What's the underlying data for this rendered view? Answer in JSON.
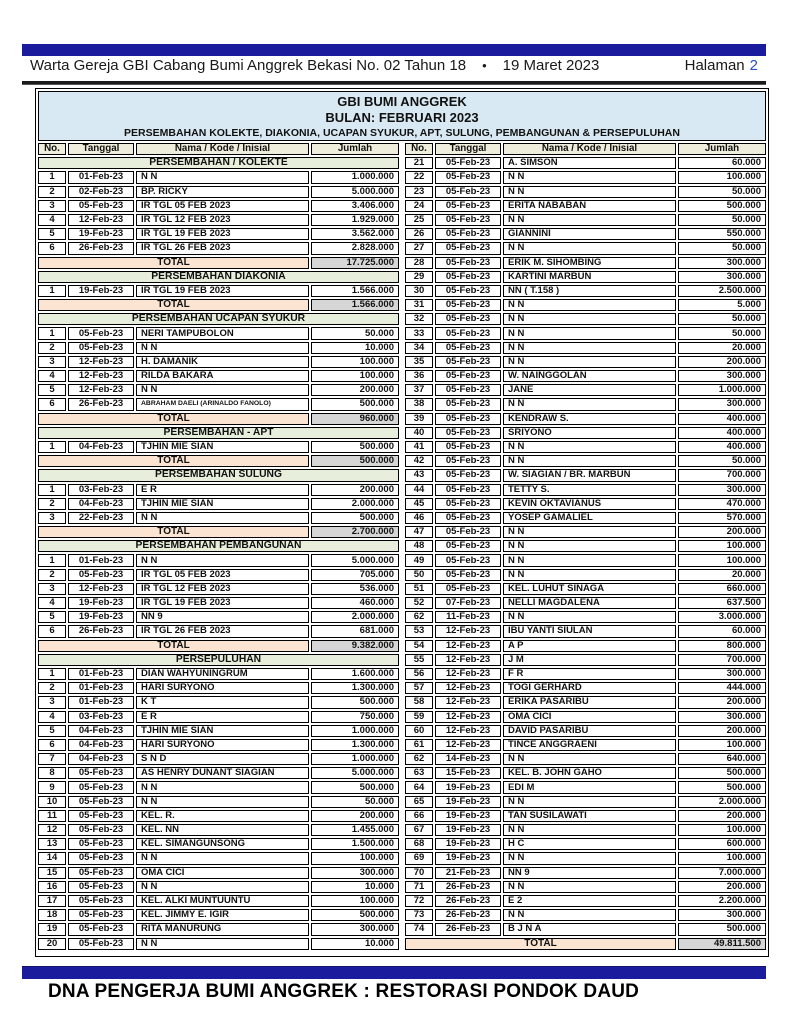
{
  "masthead": {
    "left": "Warta Gereja GBI Cabang Bumi Anggrek Bekasi No. 02 Tahun 18",
    "bullet": "•",
    "date": "19 Maret 2023",
    "page_label": "Halaman",
    "page_number": "2"
  },
  "report": {
    "title_line1": "GBI BUMI ANGGREK",
    "title_line2": "BULAN: FEBRUARI 2023",
    "title_line3": "PERSEMBAHAN KOLEKTE, DIAKONIA, UCAPAN SYUKUR, APT, SULUNG, PEMBANGUNAN & PERSEPULUHAN",
    "columns": [
      "No.",
      "Tanggal",
      "Nama / Kode / Inisial",
      "Jumlah"
    ],
    "total_label": "TOTAL"
  },
  "footer": {
    "text": "DNA PENGERJA BUMI ANGGREK : RESTORASI PONDOK DAUD"
  },
  "colors": {
    "accent_navy": "#1b1b9e",
    "page_number_blue": "#2b50c8",
    "title_bg": "#d9e9f3",
    "column_header_bg": "#efeedd",
    "section_bg": "#e7efdc",
    "total_label_bg": "#fbe5d2",
    "total_value_bg": "#d6d6d6"
  },
  "left_rows": [
    {
      "type": "section",
      "label": "PERSEMBAHAN / KOLEKTE"
    },
    {
      "type": "data",
      "no": "1",
      "date": "01-Feb-23",
      "name": "N N",
      "amount": "1.000.000"
    },
    {
      "type": "data",
      "no": "2",
      "date": "02-Feb-23",
      "name": "BP. RICKY",
      "amount": "5.000.000"
    },
    {
      "type": "data",
      "no": "3",
      "date": "05-Feb-23",
      "name": "IR TGL 05 FEB 2023",
      "amount": "3.406.000"
    },
    {
      "type": "data",
      "no": "4",
      "date": "12-Feb-23",
      "name": "IR TGL 12 FEB 2023",
      "amount": "1.929.000"
    },
    {
      "type": "data",
      "no": "5",
      "date": "19-Feb-23",
      "name": "IR TGL 19 FEB 2023",
      "amount": "3.562.000"
    },
    {
      "type": "data",
      "no": "6",
      "date": "26-Feb-23",
      "name": "IR TGL 26 FEB 2023",
      "amount": "2.828.000"
    },
    {
      "type": "total",
      "amount": "17.725.000"
    },
    {
      "type": "section",
      "label": "PERSEMBAHAN DIAKONIA"
    },
    {
      "type": "data",
      "no": "1",
      "date": "19-Feb-23",
      "name": "IR TGL 19 FEB 2023",
      "amount": "1.566.000"
    },
    {
      "type": "total",
      "amount": "1.566.000"
    },
    {
      "type": "section",
      "label": "PERSEMBAHAN UCAPAN SYUKUR"
    },
    {
      "type": "data",
      "no": "1",
      "date": "05-Feb-23",
      "name": "NERI TAMPUBOLON",
      "amount": "50.000"
    },
    {
      "type": "data",
      "no": "2",
      "date": "05-Feb-23",
      "name": "N N",
      "amount": "10.000"
    },
    {
      "type": "data",
      "no": "3",
      "date": "12-Feb-23",
      "name": "H. DAMANIK",
      "amount": "100.000"
    },
    {
      "type": "data",
      "no": "4",
      "date": "12-Feb-23",
      "name": "RILDA BAKARA",
      "amount": "100.000"
    },
    {
      "type": "data",
      "no": "5",
      "date": "12-Feb-23",
      "name": "N N",
      "amount": "200.000"
    },
    {
      "type": "data",
      "no": "6",
      "date": "26-Feb-23",
      "name": "ABRAHAM DAELI (ARINALDO FANOLO)",
      "amount": "500.000"
    },
    {
      "type": "total",
      "amount": "960.000"
    },
    {
      "type": "section",
      "label": "PERSEMBAHAN - APT"
    },
    {
      "type": "data",
      "no": "1",
      "date": "04-Feb-23",
      "name": "TJHIN MIE SIAN",
      "amount": "500.000"
    },
    {
      "type": "total",
      "amount": "500.000"
    },
    {
      "type": "section",
      "label": "PERSEMBAHAN SULUNG"
    },
    {
      "type": "data",
      "no": "1",
      "date": "03-Feb-23",
      "name": "E R",
      "amount": "200.000"
    },
    {
      "type": "data",
      "no": "2",
      "date": "04-Feb-23",
      "name": "TJHIN MIE SIAN",
      "amount": "2.000.000"
    },
    {
      "type": "data",
      "no": "3",
      "date": "22-Feb-23",
      "name": "N N",
      "amount": "500.000"
    },
    {
      "type": "total",
      "amount": "2.700.000"
    },
    {
      "type": "section",
      "label": "PERSEMBAHAN PEMBANGUNAN"
    },
    {
      "type": "data",
      "no": "1",
      "date": "01-Feb-23",
      "name": "N N",
      "amount": "5.000.000"
    },
    {
      "type": "data",
      "no": "2",
      "date": "05-Feb-23",
      "name": "IR TGL 05 FEB 2023",
      "amount": "705.000"
    },
    {
      "type": "data",
      "no": "3",
      "date": "12-Feb-23",
      "name": "IR TGL 12 FEB 2023",
      "amount": "536.000"
    },
    {
      "type": "data",
      "no": "4",
      "date": "19-Feb-23",
      "name": "IR TGL 19 FEB 2023",
      "amount": "460.000"
    },
    {
      "type": "data",
      "no": "5",
      "date": "19-Feb-23",
      "name": "NN 9",
      "amount": "2.000.000"
    },
    {
      "type": "data",
      "no": "6",
      "date": "26-Feb-23",
      "name": "IR TGL 26 FEB 2023",
      "amount": "681.000"
    },
    {
      "type": "total",
      "amount": "9.382.000"
    },
    {
      "type": "section",
      "label": "PERSEPULUHAN"
    },
    {
      "type": "data",
      "no": "1",
      "date": "01-Feb-23",
      "name": "DIAN WAHYUNINGRUM",
      "amount": "1.600.000"
    },
    {
      "type": "data",
      "no": "2",
      "date": "01-Feb-23",
      "name": "HARI SURYONO",
      "amount": "1.300.000"
    },
    {
      "type": "data",
      "no": "3",
      "date": "01-Feb-23",
      "name": "K T",
      "amount": "500.000"
    },
    {
      "type": "data",
      "no": "4",
      "date": "03-Feb-23",
      "name": "E R",
      "amount": "750.000"
    },
    {
      "type": "data",
      "no": "5",
      "date": "04-Feb-23",
      "name": "TJHIN MIE SIAN",
      "amount": "1.000.000"
    },
    {
      "type": "data",
      "no": "6",
      "date": "04-Feb-23",
      "name": "HARI SURYONO",
      "amount": "1.300.000"
    },
    {
      "type": "data",
      "no": "7",
      "date": "04-Feb-23",
      "name": "S N D",
      "amount": "1.000.000"
    },
    {
      "type": "data",
      "no": "8",
      "date": "05-Feb-23",
      "name": "AS HENRY DUNANT SIAGIAN",
      "amount": "5.000.000"
    },
    {
      "type": "data",
      "no": "9",
      "date": "05-Feb-23",
      "name": "N N",
      "amount": "500.000"
    },
    {
      "type": "data",
      "no": "10",
      "date": "05-Feb-23",
      "name": "N N",
      "amount": "50.000"
    },
    {
      "type": "data",
      "no": "11",
      "date": "05-Feb-23",
      "name": "KEL. R.",
      "amount": "200.000"
    },
    {
      "type": "data",
      "no": "12",
      "date": "05-Feb-23",
      "name": "KEL. NN",
      "amount": "1.455.000"
    },
    {
      "type": "data",
      "no": "13",
      "date": "05-Feb-23",
      "name": "KEL. SIMANGUNSONG",
      "amount": "1.500.000"
    },
    {
      "type": "data",
      "no": "14",
      "date": "05-Feb-23",
      "name": "N N",
      "amount": "100.000"
    },
    {
      "type": "data",
      "no": "15",
      "date": "05-Feb-23",
      "name": "OMA CICI",
      "amount": "300.000"
    },
    {
      "type": "data",
      "no": "16",
      "date": "05-Feb-23",
      "name": "N N",
      "amount": "10.000"
    },
    {
      "type": "data",
      "no": "17",
      "date": "05-Feb-23",
      "name": "KEL. ALKI MUNTUUNTU",
      "amount": "100.000"
    },
    {
      "type": "data",
      "no": "18",
      "date": "05-Feb-23",
      "name": "KEL. JIMMY E. IGIR",
      "amount": "500.000"
    },
    {
      "type": "data",
      "no": "19",
      "date": "05-Feb-23",
      "name": "RITA MANURUNG",
      "amount": "300.000"
    },
    {
      "type": "data",
      "no": "20",
      "date": "05-Feb-23",
      "name": "N N",
      "amount": "10.000"
    }
  ],
  "right_rows": [
    {
      "type": "data",
      "no": "21",
      "date": "05-Feb-23",
      "name": "A. SIMSON",
      "amount": "60.000"
    },
    {
      "type": "data",
      "no": "22",
      "date": "05-Feb-23",
      "name": "N N",
      "amount": "100.000"
    },
    {
      "type": "data",
      "no": "23",
      "date": "05-Feb-23",
      "name": "N N",
      "amount": "50.000"
    },
    {
      "type": "data",
      "no": "24",
      "date": "05-Feb-23",
      "name": "ERITA NABABAN",
      "amount": "500.000"
    },
    {
      "type": "data",
      "no": "25",
      "date": "05-Feb-23",
      "name": "N N",
      "amount": "50.000"
    },
    {
      "type": "data",
      "no": "26",
      "date": "05-Feb-23",
      "name": "GIANNINI",
      "amount": "550.000"
    },
    {
      "type": "data",
      "no": "27",
      "date": "05-Feb-23",
      "name": "N N",
      "amount": "50.000"
    },
    {
      "type": "data",
      "no": "28",
      "date": "05-Feb-23",
      "name": "ERIK M. SIHOMBING",
      "amount": "300.000"
    },
    {
      "type": "data",
      "no": "29",
      "date": "05-Feb-23",
      "name": "KARTINI MARBUN",
      "amount": "300.000"
    },
    {
      "type": "data",
      "no": "30",
      "date": "05-Feb-23",
      "name": "NN ( T.158 )",
      "amount": "2.500.000"
    },
    {
      "type": "data",
      "no": "31",
      "date": "05-Feb-23",
      "name": "N N",
      "amount": "5.000"
    },
    {
      "type": "data",
      "no": "32",
      "date": "05-Feb-23",
      "name": "N N",
      "amount": "50.000"
    },
    {
      "type": "data",
      "no": "33",
      "date": "05-Feb-23",
      "name": "N N",
      "amount": "50.000"
    },
    {
      "type": "data",
      "no": "34",
      "date": "05-Feb-23",
      "name": "N N",
      "amount": "20.000"
    },
    {
      "type": "data",
      "no": "35",
      "date": "05-Feb-23",
      "name": "N N",
      "amount": "200.000"
    },
    {
      "type": "data",
      "no": "36",
      "date": "05-Feb-23",
      "name": "W. NAINGGOLAN",
      "amount": "300.000"
    },
    {
      "type": "data",
      "no": "37",
      "date": "05-Feb-23",
      "name": "JANE",
      "amount": "1.000.000"
    },
    {
      "type": "data",
      "no": "38",
      "date": "05-Feb-23",
      "name": "N N",
      "amount": "300.000"
    },
    {
      "type": "data",
      "no": "39",
      "date": "05-Feb-23",
      "name": "KENDRAW S.",
      "amount": "400.000"
    },
    {
      "type": "data",
      "no": "40",
      "date": "05-Feb-23",
      "name": "SRIYONO",
      "amount": "400.000"
    },
    {
      "type": "data",
      "no": "41",
      "date": "05-Feb-23",
      "name": "N N",
      "amount": "400.000"
    },
    {
      "type": "data",
      "no": "42",
      "date": "05-Feb-23",
      "name": "N N",
      "amount": "50.000"
    },
    {
      "type": "data",
      "no": "43",
      "date": "05-Feb-23",
      "name": "W. SIAGIAN / BR. MARBUN",
      "amount": "700.000"
    },
    {
      "type": "data",
      "no": "44",
      "date": "05-Feb-23",
      "name": "TETTY S.",
      "amount": "300.000"
    },
    {
      "type": "data",
      "no": "45",
      "date": "05-Feb-23",
      "name": "KEVIN OKTAVIANUS",
      "amount": "470.000"
    },
    {
      "type": "data",
      "no": "46",
      "date": "05-Feb-23",
      "name": "YOSEP GAMALIEL",
      "amount": "570.000"
    },
    {
      "type": "data",
      "no": "47",
      "date": "05-Feb-23",
      "name": "N N",
      "amount": "200.000"
    },
    {
      "type": "data",
      "no": "48",
      "date": "05-Feb-23",
      "name": "N N",
      "amount": "100.000"
    },
    {
      "type": "data",
      "no": "49",
      "date": "05-Feb-23",
      "name": "N N",
      "amount": "100.000"
    },
    {
      "type": "data",
      "no": "50",
      "date": "05-Feb-23",
      "name": "N N",
      "amount": "20.000"
    },
    {
      "type": "data",
      "no": "51",
      "date": "05-Feb-23",
      "name": "KEL. LUHUT SINAGA",
      "amount": "660.000"
    },
    {
      "type": "data",
      "no": "52",
      "date": "07-Feb-23",
      "name": "NELLI MAGDALENA",
      "amount": "637.500"
    },
    {
      "type": "data",
      "no": "62",
      "date": "11-Feb-23",
      "name": "N N",
      "amount": "3.000.000"
    },
    {
      "type": "data",
      "no": "53",
      "date": "12-Feb-23",
      "name": "IBU YANTI SIULAN",
      "amount": "60.000"
    },
    {
      "type": "data",
      "no": "54",
      "date": "12-Feb-23",
      "name": "A P",
      "amount": "800.000"
    },
    {
      "type": "data",
      "no": "55",
      "date": "12-Feb-23",
      "name": "J M",
      "amount": "700.000"
    },
    {
      "type": "data",
      "no": "56",
      "date": "12-Feb-23",
      "name": "F R",
      "amount": "300.000"
    },
    {
      "type": "data",
      "no": "57",
      "date": "12-Feb-23",
      "name": "TOGI GERHARD",
      "amount": "444.000"
    },
    {
      "type": "data",
      "no": "58",
      "date": "12-Feb-23",
      "name": "ERIKA PASARIBU",
      "amount": "200.000"
    },
    {
      "type": "data",
      "no": "59",
      "date": "12-Feb-23",
      "name": "OMA CICI",
      "amount": "300.000"
    },
    {
      "type": "data",
      "no": "60",
      "date": "12-Feb-23",
      "name": "DAVID PASARIBU",
      "amount": "200.000"
    },
    {
      "type": "data",
      "no": "61",
      "date": "12-Feb-23",
      "name": "TINCE ANGGRAENI",
      "amount": "100.000"
    },
    {
      "type": "data",
      "no": "62",
      "date": "14-Feb-23",
      "name": "N N",
      "amount": "640.000"
    },
    {
      "type": "data",
      "no": "63",
      "date": "15-Feb-23",
      "name": "KEL. B. JOHN GAHO",
      "amount": "500.000"
    },
    {
      "type": "data",
      "no": "64",
      "date": "19-Feb-23",
      "name": "EDI M",
      "amount": "500.000"
    },
    {
      "type": "data",
      "no": "65",
      "date": "19-Feb-23",
      "name": "N N",
      "amount": "2.000.000"
    },
    {
      "type": "data",
      "no": "66",
      "date": "19-Feb-23",
      "name": "TAN SUSILAWATI",
      "amount": "200.000"
    },
    {
      "type": "data",
      "no": "67",
      "date": "19-Feb-23",
      "name": "N N",
      "amount": "100.000"
    },
    {
      "type": "data",
      "no": "68",
      "date": "19-Feb-23",
      "name": "H C",
      "amount": "600.000"
    },
    {
      "type": "data",
      "no": "69",
      "date": "19-Feb-23",
      "name": "N N",
      "amount": "100.000"
    },
    {
      "type": "data",
      "no": "70",
      "date": "21-Feb-23",
      "name": "NN 9",
      "amount": "7.000.000"
    },
    {
      "type": "data",
      "no": "71",
      "date": "26-Feb-23",
      "name": "N N",
      "amount": "200.000"
    },
    {
      "type": "data",
      "no": "72",
      "date": "26-Feb-23",
      "name": "E 2",
      "amount": "2.200.000"
    },
    {
      "type": "data",
      "no": "73",
      "date": "26-Feb-23",
      "name": "N N",
      "amount": "300.000"
    },
    {
      "type": "data",
      "no": "74",
      "date": "26-Feb-23",
      "name": "B J N A",
      "amount": "500.000"
    },
    {
      "type": "total",
      "amount": "49.811.500"
    }
  ]
}
